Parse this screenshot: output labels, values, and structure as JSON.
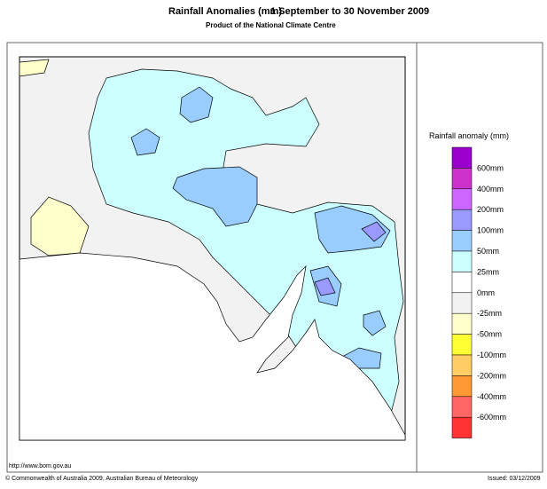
{
  "header": {
    "title": "Rainfall Anomalies (mm)",
    "period": "1 September to 30 November 2009",
    "subtitle": "Product of the National Climate Centre"
  },
  "legend": {
    "title": "Rainfall anomaly (mm)",
    "colors": [
      "#9900cc",
      "#cc33cc",
      "#cc66ff",
      "#9999ff",
      "#99ccff",
      "#ccffff",
      "#ffffff",
      "#f2f2f2",
      "#ffffcc",
      "#ffff33",
      "#ffcc66",
      "#ff9933",
      "#ff6666",
      "#ff3333"
    ],
    "labels": [
      "600mm",
      "400mm",
      "200mm",
      "100mm",
      "50mm",
      "25mm",
      "0mm",
      "-25mm",
      "-50mm",
      "-100mm",
      "-200mm",
      "-400mm",
      "-600mm"
    ]
  },
  "footer": {
    "url": "http://www.bom.gov.au",
    "copyright": "© Commonwealth of Australia 2009, Australian Bureau of Meteorology",
    "issued": "Issued: 03/12/2009"
  }
}
